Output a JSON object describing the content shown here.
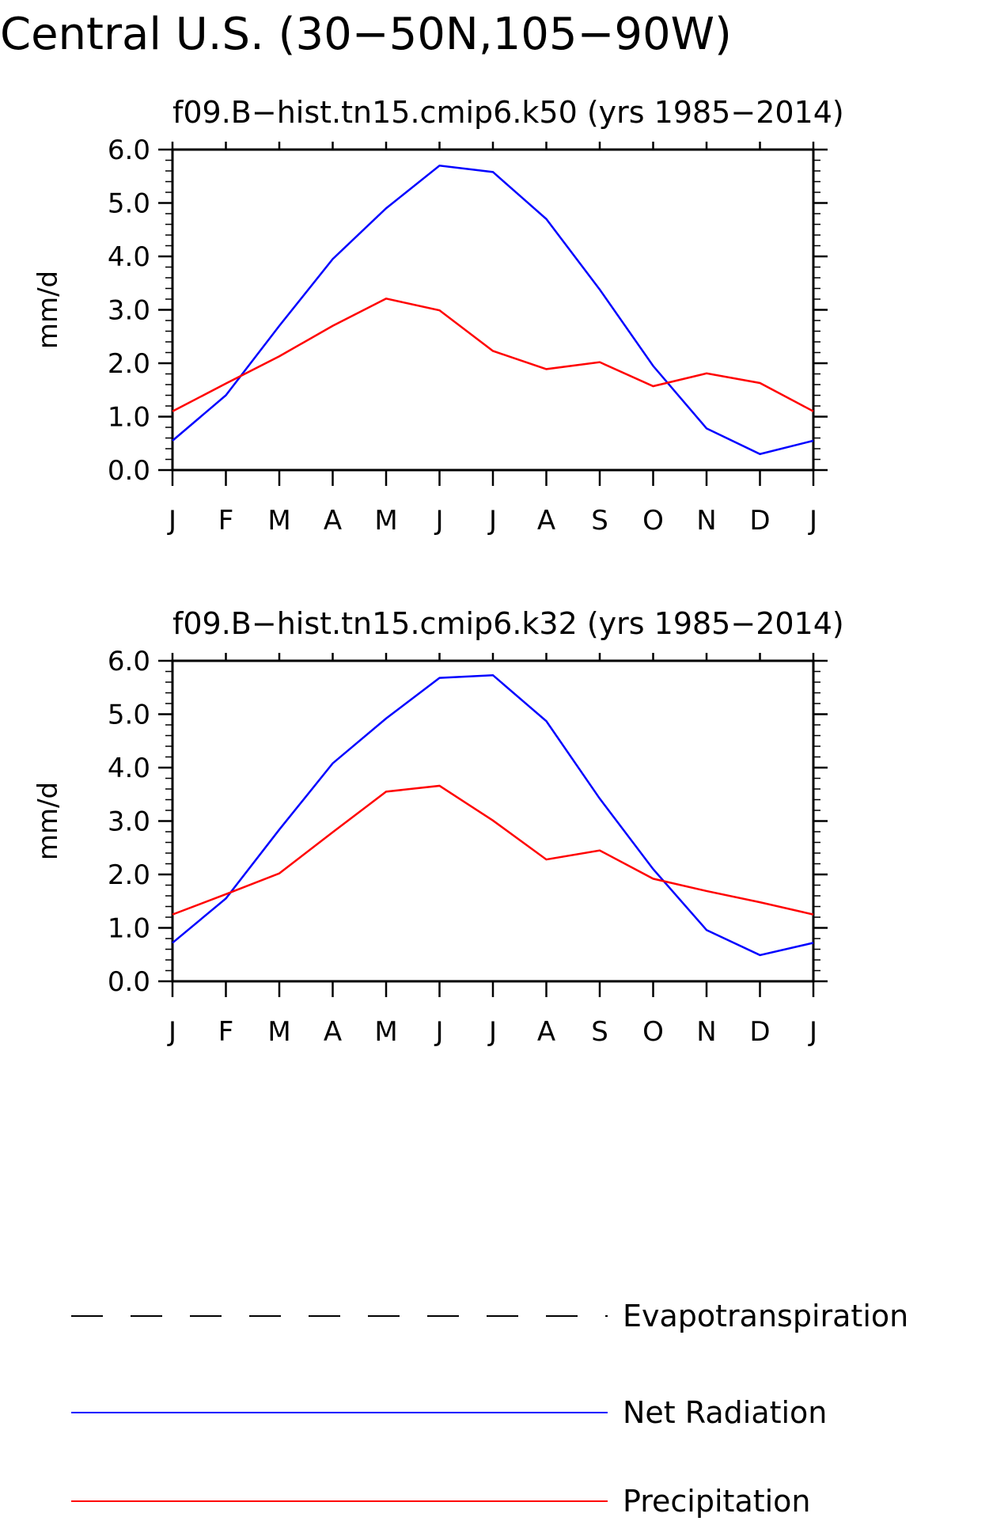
{
  "figure": {
    "title": "Central U.S. (30−50N,105−90W)"
  },
  "colors": {
    "net_radiation": "#0000ff",
    "precipitation": "#ff0000",
    "evapotranspiration": "#000000",
    "axes": "#000000"
  },
  "chart_data": [
    {
      "type": "line",
      "title": "f09.B−hist.tn15.cmip6.k50 (yrs 1985−2014)",
      "ylabel": "mm/d",
      "xlabel": "",
      "categories": [
        "J",
        "F",
        "M",
        "A",
        "M",
        "J",
        "J",
        "A",
        "S",
        "O",
        "N",
        "D",
        "J"
      ],
      "yticks": [
        "0.0",
        "1.0",
        "2.0",
        "3.0",
        "4.0",
        "5.0",
        "6.0"
      ],
      "ylim": [
        0,
        6
      ],
      "grid": false,
      "series": [
        {
          "name": "Net Radiation",
          "color": "#0000ff",
          "style": "solid",
          "values": [
            0.55,
            1.4,
            2.7,
            3.95,
            4.9,
            5.7,
            5.58,
            4.7,
            3.38,
            1.95,
            0.78,
            0.3,
            0.55
          ]
        },
        {
          "name": "Precipitation",
          "color": "#ff0000",
          "style": "solid",
          "values": [
            1.1,
            1.62,
            2.13,
            2.7,
            3.21,
            2.99,
            2.23,
            1.89,
            2.02,
            1.57,
            1.81,
            1.63,
            1.1
          ]
        }
      ]
    },
    {
      "type": "line",
      "title": "f09.B−hist.tn15.cmip6.k32 (yrs 1985−2014)",
      "ylabel": "mm/d",
      "xlabel": "",
      "categories": [
        "J",
        "F",
        "M",
        "A",
        "M",
        "J",
        "J",
        "A",
        "S",
        "O",
        "N",
        "D",
        "J"
      ],
      "yticks": [
        "0.0",
        "1.0",
        "2.0",
        "3.0",
        "4.0",
        "5.0",
        "6.0"
      ],
      "ylim": [
        0,
        6
      ],
      "grid": false,
      "series": [
        {
          "name": "Net Radiation",
          "color": "#0000ff",
          "style": "solid",
          "values": [
            0.72,
            1.55,
            2.84,
            4.08,
            4.92,
            5.68,
            5.73,
            4.87,
            3.42,
            2.1,
            0.96,
            0.49,
            0.72
          ]
        },
        {
          "name": "Precipitation",
          "color": "#ff0000",
          "style": "solid",
          "values": [
            1.25,
            1.63,
            2.02,
            2.79,
            3.55,
            3.66,
            3.01,
            2.28,
            2.45,
            1.92,
            1.69,
            1.48,
            1.25
          ]
        }
      ]
    }
  ],
  "legend": {
    "placement": "bottom",
    "items": [
      {
        "label": "Evapotranspiration",
        "color": "#000000",
        "style": "dashed"
      },
      {
        "label": "Net Radiation",
        "color": "#0000ff",
        "style": "solid"
      },
      {
        "label": "Precipitation",
        "color": "#ff0000",
        "style": "solid"
      }
    ]
  }
}
